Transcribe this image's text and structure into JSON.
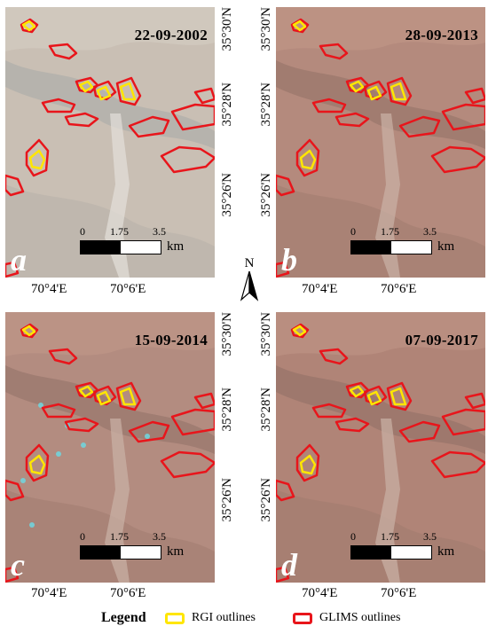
{
  "panels": [
    {
      "id": "a",
      "date": "22-09-2002",
      "label": "a"
    },
    {
      "id": "b",
      "date": "28-09-2013",
      "label": "b"
    },
    {
      "id": "c",
      "date": "15-09-2014",
      "label": "c"
    },
    {
      "id": "d",
      "date": "07-09-2017",
      "label": "d"
    }
  ],
  "scale_bar": {
    "ticks": [
      "0",
      "1.75",
      "3.5"
    ],
    "unit": "km"
  },
  "longitude_labels": [
    "70°4'E",
    "70°6'E"
  ],
  "latitude_labels": [
    "35°30'N",
    "35°28'N",
    "35°26'N"
  ],
  "north_arrow": "N",
  "legend": {
    "title": "Legend",
    "items": [
      {
        "label": "RGI outlines",
        "color": "#ffe600"
      },
      {
        "label": "GLIMS outlines",
        "color": "#e8151b"
      }
    ]
  },
  "colors": {
    "panel_a_bg": "#c9bfb4",
    "panel_b_bg": "#b48a7d",
    "panel_c_bg": "#b38c80",
    "panel_d_bg": "#b08477",
    "rgi": "#ffe600",
    "glims": "#e8151b"
  }
}
